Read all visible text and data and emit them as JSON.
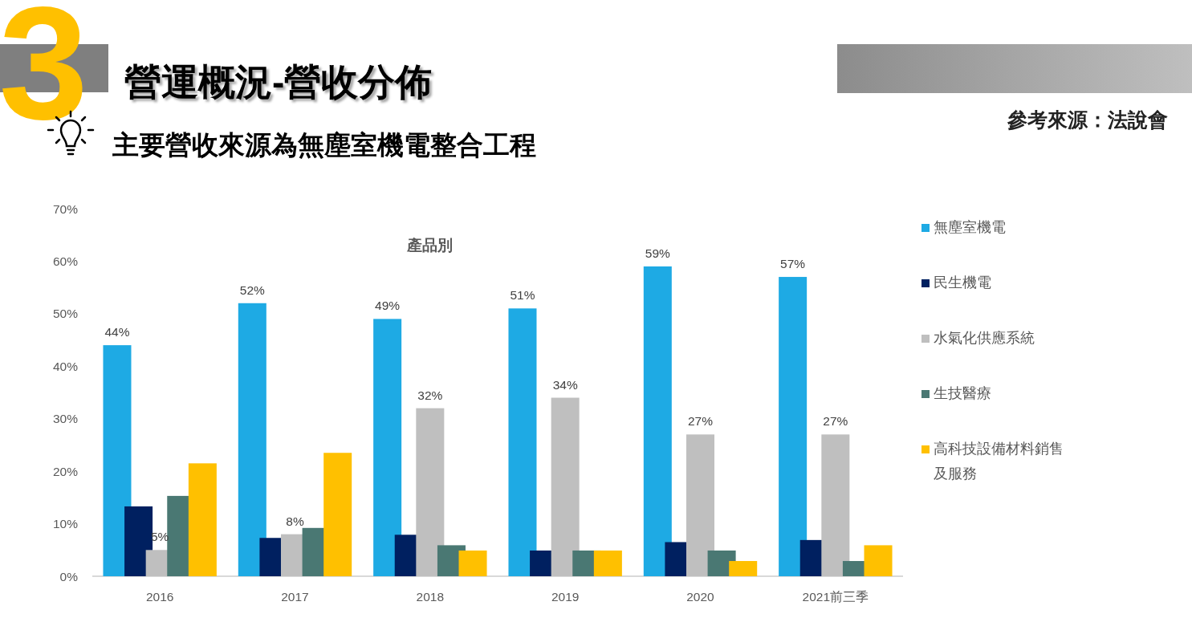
{
  "chart_data": {
    "type": "bar",
    "title": "營運概況-營收分佈",
    "subtitle": "主要營收來源為無塵室機電整合工程",
    "annotations": [
      "3",
      "產品別",
      "參考來源：法說會"
    ],
    "categories": [
      "2016",
      "2017",
      "2018",
      "2019",
      "2020",
      "2021前三季"
    ],
    "series": [
      {
        "name": "無塵室機電",
        "color": "#1eaae4",
        "values": [
          44,
          52,
          49,
          51,
          59,
          57
        ],
        "value_labels": [
          "44%",
          "52%",
          "49%",
          "51%",
          "59%",
          "57%"
        ]
      },
      {
        "name": "民生機電",
        "color": "#002060",
        "values": [
          13.3,
          7.3,
          7.9,
          4.9,
          6.5,
          6.9
        ]
      },
      {
        "name": "水氣化供應系統",
        "color": "#bfbfbf",
        "values": [
          5,
          8,
          32,
          34,
          27,
          27
        ],
        "value_labels": [
          "5%",
          "8%",
          "32%",
          "34%",
          "27%",
          "27%"
        ]
      },
      {
        "name": "生技醫療",
        "color": "#4a7873",
        "values": [
          15.3,
          9.2,
          5.9,
          4.9,
          4.9,
          2.9
        ]
      },
      {
        "name": "高科技設備材料銷售及服務",
        "color": "#ffc000",
        "values": [
          21.5,
          23.5,
          4.9,
          4.9,
          2.9,
          5.9
        ]
      }
    ],
    "ylim": [
      0,
      70
    ],
    "yticks": [
      {
        "value": 0,
        "label": "0%"
      },
      {
        "value": 10,
        "label": "10%"
      },
      {
        "value": 20,
        "label": "20%"
      },
      {
        "value": 30,
        "label": "30%"
      },
      {
        "value": 40,
        "label": "40%"
      },
      {
        "value": 50,
        "label": "50%"
      },
      {
        "value": 60,
        "label": "60%"
      },
      {
        "value": 70,
        "label": "70%"
      }
    ],
    "grid": false,
    "legend": "right"
  }
}
